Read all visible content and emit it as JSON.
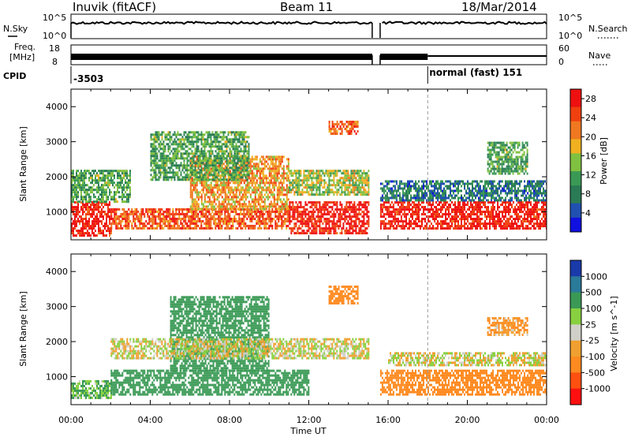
{
  "header": {
    "station": "Inuvik (fitACF)",
    "beam": "Beam 11",
    "date": "18/Mar/2014"
  },
  "panels": {
    "nsky": {
      "left_label": "N.Sky",
      "left_ticks": [
        "10^5",
        "10^0"
      ],
      "right_label": "N.Search",
      "right_ticks": [
        "10^5",
        "10^0"
      ]
    },
    "freq": {
      "left_label_1": "Freq.",
      "left_label_2": "[MHz]",
      "left_ticks": [
        "18",
        "8"
      ],
      "right_label": "Nave",
      "right_ticks": [
        "60",
        "0"
      ]
    },
    "cpid": {
      "label": "CPID",
      "first_id": "-3503",
      "second_id": "normal (fast) 151",
      "switch_hour": 18.0
    }
  },
  "colors": {
    "power": [
      "#1010e0",
      "#2050b0",
      "#2a7a55",
      "#3a9a55",
      "#80c040",
      "#f0b020",
      "#f07820",
      "#f04010",
      "#ee1010"
    ],
    "velocity": [
      "#ff1010",
      "#ff5010",
      "#ff8a20",
      "#f0a030",
      "#d0d0c8",
      "#88d040",
      "#3a9a55",
      "#2a7a9a",
      "#1a3aaa"
    ]
  },
  "chart_data": [
    {
      "type": "heatmap",
      "title": "",
      "xlabel": "Time UT",
      "ylabel": "Slant Range [km]",
      "xlim": [
        0,
        24
      ],
      "ylim": [
        200,
        4500
      ],
      "x_ticks": [
        "00:00",
        "04:00",
        "08:00",
        "12:00",
        "16:00",
        "20:00",
        "00:00"
      ],
      "y_ticks": [
        "1000",
        "2000",
        "3000",
        "4000"
      ],
      "colorbar": {
        "label": "Power [dB]",
        "ticks": [
          "4",
          "8",
          "12",
          "16",
          "20",
          "24",
          "28"
        ],
        "range": [
          0,
          30
        ]
      },
      "data_gap_hours": [
        15.2,
        15.6
      ],
      "regions": [
        {
          "t": [
            0.0,
            2.0
          ],
          "r": [
            300,
            1300
          ],
          "level": 28
        },
        {
          "t": [
            0.0,
            3.0
          ],
          "r": [
            1300,
            2200
          ],
          "level": 12
        },
        {
          "t": [
            2.0,
            11.0
          ],
          "r": [
            500,
            1100
          ],
          "level": 24
        },
        {
          "t": [
            6.0,
            11.0
          ],
          "r": [
            1100,
            2600
          ],
          "level": 20
        },
        {
          "t": [
            4.0,
            9.0
          ],
          "r": [
            1900,
            3300
          ],
          "level": 12
        },
        {
          "t": [
            11.0,
            15.0
          ],
          "r": [
            400,
            1300
          ],
          "level": 28
        },
        {
          "t": [
            11.0,
            15.0
          ],
          "r": [
            1500,
            2200
          ],
          "level": 16
        },
        {
          "t": [
            13.0,
            14.5
          ],
          "r": [
            3200,
            3600
          ],
          "level": 24
        },
        {
          "t": [
            15.6,
            24.0
          ],
          "r": [
            500,
            1300
          ],
          "level": 28
        },
        {
          "t": [
            15.6,
            24.0
          ],
          "r": [
            1300,
            1900
          ],
          "level": 8
        },
        {
          "t": [
            21.0,
            23.0
          ],
          "r": [
            2100,
            3000
          ],
          "level": 12
        }
      ]
    },
    {
      "type": "heatmap",
      "title": "",
      "xlabel": "Time UT",
      "ylabel": "Slant Range [km]",
      "xlim": [
        0,
        24
      ],
      "ylim": [
        200,
        4500
      ],
      "x_ticks": [
        "00:00",
        "04:00",
        "08:00",
        "12:00",
        "16:00",
        "20:00",
        "00:00"
      ],
      "y_ticks": [
        "1000",
        "2000",
        "3000",
        "4000"
      ],
      "colorbar": {
        "label": "Velocity [m s^-1]",
        "ticks": [
          "1000",
          "500",
          "100",
          "25",
          "-25",
          "-100",
          "-500",
          "-1000"
        ]
      },
      "data_gap_hours": [
        15.2,
        15.6
      ],
      "regions": [
        {
          "t": [
            0.0,
            2.0
          ],
          "r": [
            400,
            900
          ],
          "level": 100
        },
        {
          "t": [
            2.0,
            12.0
          ],
          "r": [
            500,
            1200
          ],
          "level": 300
        },
        {
          "t": [
            5.0,
            10.0
          ],
          "r": [
            1200,
            3300
          ],
          "level": 300
        },
        {
          "t": [
            2.0,
            15.0
          ],
          "r": [
            1500,
            2100
          ],
          "level": 0
        },
        {
          "t": [
            13.0,
            14.5
          ],
          "r": [
            3100,
            3600
          ],
          "level": -300
        },
        {
          "t": [
            15.6,
            24.0
          ],
          "r": [
            500,
            1200
          ],
          "level": -300
        },
        {
          "t": [
            16.0,
            24.0
          ],
          "r": [
            1300,
            1700
          ],
          "level": 0
        },
        {
          "t": [
            21.0,
            23.0
          ],
          "r": [
            2200,
            2700
          ],
          "level": -100
        }
      ]
    }
  ]
}
